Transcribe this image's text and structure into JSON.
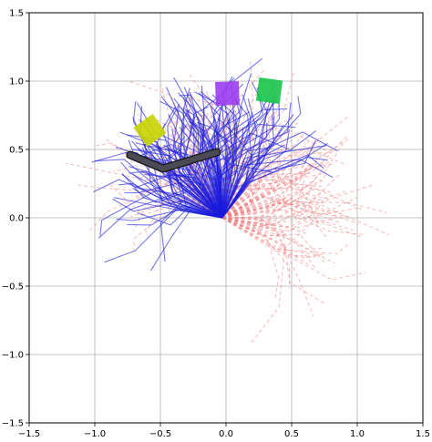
{
  "chart_data": {
    "type": "scatter",
    "title": "",
    "xlabel": "",
    "ylabel": "",
    "xlim": [
      -1.5,
      1.5
    ],
    "ylim": [
      -1.5,
      1.5
    ],
    "grid": true,
    "x_ticks": [
      "−1.5",
      "−1.0",
      "−0.5",
      "0.0",
      "0.5",
      "1.0",
      "1.5"
    ],
    "y_ticks": [
      "1.5",
      "1.0",
      "0.5",
      "0.0",
      "−0.5",
      "−1.0",
      "−1.5"
    ],
    "x_tick_values": [
      -1.5,
      -1.0,
      -0.5,
      0.0,
      0.5,
      1.0,
      1.5
    ],
    "y_tick_values": [
      1.5,
      1.0,
      0.5,
      0.0,
      -0.5,
      -1.0,
      -1.5
    ],
    "origin": [
      -0.03,
      0.0
    ],
    "arm": {
      "color": "#4a4a55",
      "joints": [
        [
          -0.07,
          0.48
        ],
        [
          -0.48,
          0.36
        ],
        [
          -0.73,
          0.46
        ]
      ]
    },
    "targets": [
      {
        "name": "yellow-square",
        "color": "#c8d400",
        "center": [
          -0.58,
          0.64
        ],
        "size": 0.18,
        "angle": 35
      },
      {
        "name": "purple-square",
        "color": "#9b3df0",
        "center": [
          0.01,
          0.91
        ],
        "size": 0.18,
        "angle": 2
      },
      {
        "name": "green-square",
        "color": "#18c44a",
        "center": [
          0.33,
          0.93
        ],
        "size": 0.18,
        "angle": -8
      }
    ],
    "series": [
      {
        "style": "solid",
        "color": "#1a1adb",
        "count": 150,
        "seed": 7
      },
      {
        "style": "dashed",
        "color": "#f08080",
        "count": 150,
        "seed": 19
      }
    ]
  }
}
